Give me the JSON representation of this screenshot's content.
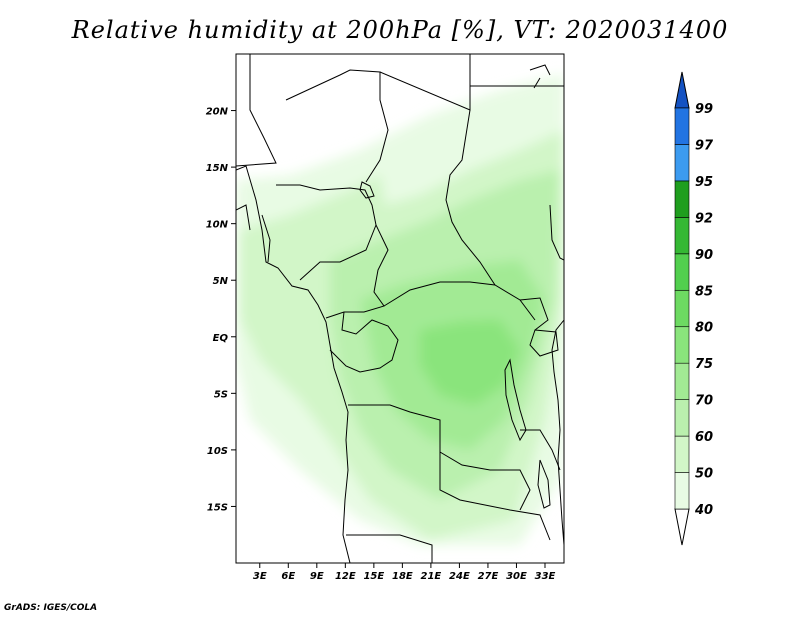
{
  "title": "Relative humidity at 200hPa [%], VT: 2020031400",
  "credit": "GrADS: IGES/COLA",
  "map": {
    "lon_labels": [
      "3E",
      "6E",
      "9E",
      "12E",
      "15E",
      "18E",
      "21E",
      "24E",
      "27E",
      "30E",
      "33E"
    ],
    "lon_values": [
      3,
      6,
      9,
      12,
      15,
      18,
      21,
      24,
      27,
      30,
      33
    ],
    "lat_labels": [
      "20N",
      "15N",
      "10N",
      "5N",
      "EQ",
      "5S",
      "10S",
      "15S"
    ],
    "lat_values": [
      20,
      15,
      10,
      5,
      0,
      -5,
      -10,
      -15
    ],
    "lon_range": [
      0.5,
      35
    ],
    "lat_range": [
      -20,
      25
    ],
    "variable": "relative humidity",
    "level_hpa": 200,
    "unit": "%",
    "valid_time": "2020031400"
  },
  "colorbar": {
    "levels": [
      "40",
      "50",
      "60",
      "70",
      "75",
      "80",
      "85",
      "90",
      "92",
      "95",
      "97",
      "99"
    ],
    "colors": [
      "#ffffff",
      "#e8fbe4",
      "#d2f6c8",
      "#baf0ae",
      "#a2ea94",
      "#8ae47c",
      "#6dda62",
      "#52cf4e",
      "#35b834",
      "#1f9e1e",
      "#3c9bf0",
      "#2274e2",
      "#1452c2"
    ],
    "extend_top_color": "#1452c2",
    "extend_bottom_color": "#ffffff"
  }
}
